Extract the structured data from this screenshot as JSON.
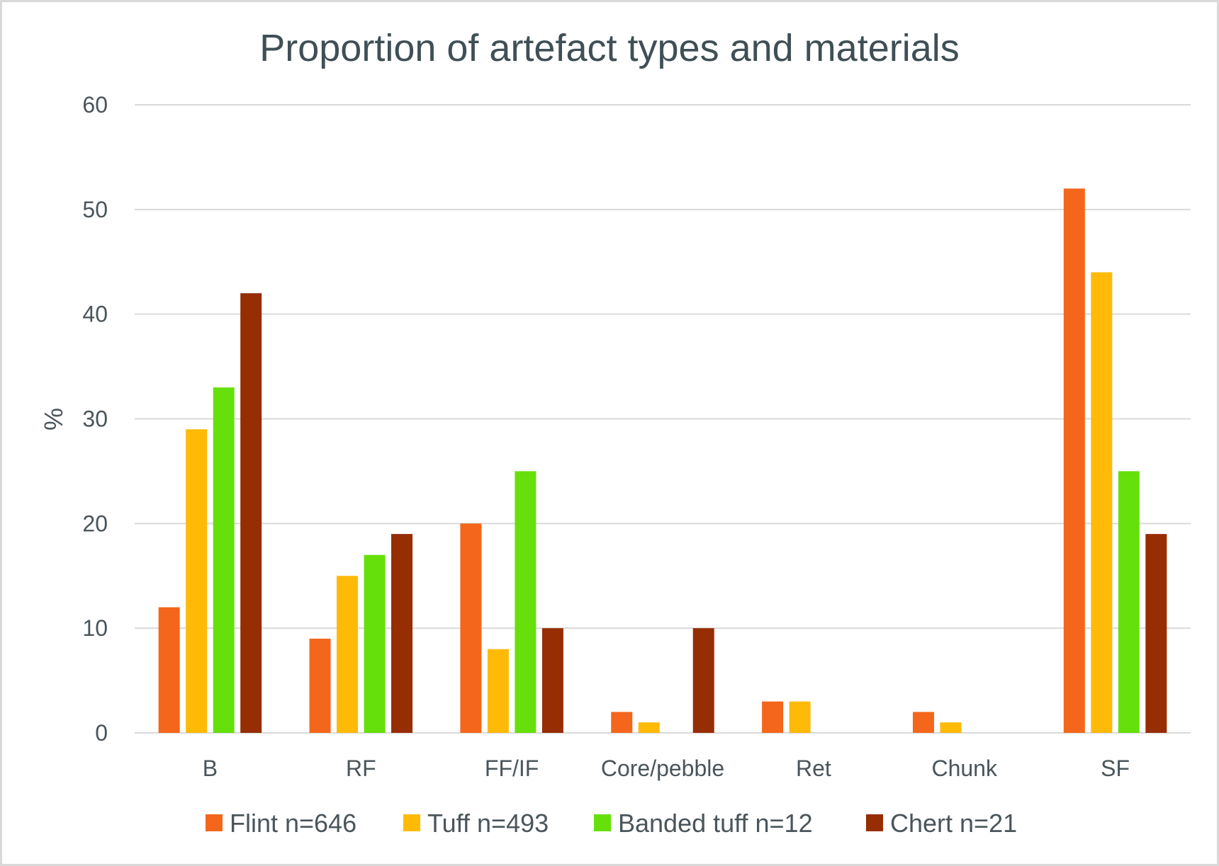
{
  "chart_data": {
    "type": "bar",
    "title": "Proportion of artefact types and materials",
    "ylabel": "%",
    "xlabel": "",
    "ylim": [
      0,
      60
    ],
    "yticks": [
      0,
      10,
      20,
      30,
      40,
      50,
      60
    ],
    "grid": true,
    "legend_position": "bottom",
    "categories": [
      "B",
      "RF",
      "FF/IF",
      "Core/pebble",
      "Ret",
      "Chunk",
      "SF"
    ],
    "series": [
      {
        "name": "Flint n=646",
        "color": "#f4661b",
        "values": [
          12,
          9,
          20,
          2,
          3,
          2,
          52
        ]
      },
      {
        "name": "Tuff n=493",
        "color": "#ffba08",
        "values": [
          29,
          15,
          8,
          1,
          3,
          1,
          44
        ]
      },
      {
        "name": "Banded tuff n=12",
        "color": "#66e00b",
        "values": [
          33,
          17,
          25,
          0,
          0,
          0,
          25
        ]
      },
      {
        "name": "Chert n=21",
        "color": "#962d03",
        "values": [
          42,
          19,
          10,
          10,
          0,
          0,
          19
        ]
      }
    ]
  }
}
